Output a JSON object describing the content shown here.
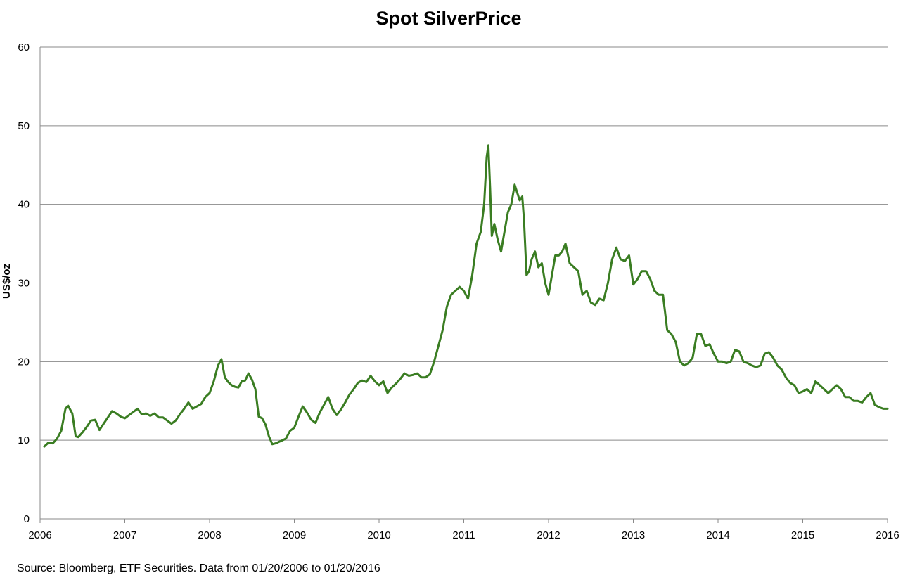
{
  "chart_data": {
    "type": "line",
    "title": "Spot SilverPrice",
    "xlabel": "",
    "ylabel": "US$/oz",
    "x_tick_labels": [
      "2006",
      "2007",
      "2008",
      "2009",
      "2010",
      "2011",
      "2012",
      "2013",
      "2014",
      "2015",
      "2016"
    ],
    "y_tick_labels": [
      "0",
      "10",
      "20",
      "30",
      "40",
      "50",
      "60"
    ],
    "xlim": [
      2006.0,
      2016.0
    ],
    "ylim": [
      0,
      60
    ],
    "grid": "horizontal",
    "legend": "none",
    "series": [
      {
        "color": "#3a7d22",
        "x": [
          2006.05,
          2006.1,
          2006.15,
          2006.2,
          2006.25,
          2006.3,
          2006.33,
          2006.38,
          2006.42,
          2006.45,
          2006.5,
          2006.55,
          2006.6,
          2006.65,
          2006.7,
          2006.75,
          2006.8,
          2006.85,
          2006.9,
          2006.95,
          2007.0,
          2007.05,
          2007.1,
          2007.15,
          2007.2,
          2007.25,
          2007.3,
          2007.35,
          2007.4,
          2007.45,
          2007.5,
          2007.55,
          2007.6,
          2007.65,
          2007.7,
          2007.75,
          2007.8,
          2007.85,
          2007.9,
          2007.95,
          2008.0,
          2008.05,
          2008.1,
          2008.14,
          2008.18,
          2008.22,
          2008.26,
          2008.3,
          2008.34,
          2008.38,
          2008.42,
          2008.46,
          2008.5,
          2008.54,
          2008.58,
          2008.62,
          2008.66,
          2008.7,
          2008.74,
          2008.78,
          2008.82,
          2008.86,
          2008.9,
          2008.95,
          2009.0,
          2009.05,
          2009.1,
          2009.15,
          2009.2,
          2009.25,
          2009.3,
          2009.35,
          2009.4,
          2009.45,
          2009.5,
          2009.55,
          2009.6,
          2009.65,
          2009.7,
          2009.75,
          2009.8,
          2009.85,
          2009.9,
          2009.95,
          2010.0,
          2010.05,
          2010.1,
          2010.15,
          2010.2,
          2010.25,
          2010.3,
          2010.35,
          2010.4,
          2010.45,
          2010.5,
          2010.55,
          2010.6,
          2010.65,
          2010.7,
          2010.75,
          2010.8,
          2010.85,
          2010.9,
          2010.95,
          2011.0,
          2011.05,
          2011.1,
          2011.15,
          2011.2,
          2011.24,
          2011.27,
          2011.29,
          2011.31,
          2011.33,
          2011.36,
          2011.4,
          2011.44,
          2011.48,
          2011.52,
          2011.56,
          2011.6,
          2011.63,
          2011.66,
          2011.69,
          2011.71,
          2011.74,
          2011.77,
          2011.8,
          2011.84,
          2011.88,
          2011.92,
          2011.96,
          2012.0,
          2012.04,
          2012.08,
          2012.12,
          2012.16,
          2012.2,
          2012.25,
          2012.3,
          2012.35,
          2012.4,
          2012.45,
          2012.5,
          2012.55,
          2012.6,
          2012.65,
          2012.7,
          2012.75,
          2012.8,
          2012.85,
          2012.9,
          2012.95,
          2013.0,
          2013.05,
          2013.1,
          2013.15,
          2013.2,
          2013.25,
          2013.3,
          2013.35,
          2013.4,
          2013.45,
          2013.5,
          2013.55,
          2013.6,
          2013.65,
          2013.7,
          2013.75,
          2013.8,
          2013.85,
          2013.9,
          2013.95,
          2014.0,
          2014.05,
          2014.1,
          2014.15,
          2014.2,
          2014.25,
          2014.3,
          2014.35,
          2014.4,
          2014.45,
          2014.5,
          2014.55,
          2014.6,
          2014.65,
          2014.7,
          2014.75,
          2014.8,
          2014.85,
          2014.9,
          2014.95,
          2015.0,
          2015.05,
          2015.1,
          2015.15,
          2015.2,
          2015.25,
          2015.3,
          2015.35,
          2015.4,
          2015.45,
          2015.5,
          2015.55,
          2015.6,
          2015.65,
          2015.7,
          2015.75,
          2015.8,
          2015.85,
          2015.9,
          2015.95,
          2016.0
        ],
        "y": [
          9.2,
          9.7,
          9.6,
          10.2,
          11.2,
          14.0,
          14.4,
          13.4,
          10.5,
          10.4,
          11.0,
          11.7,
          12.5,
          12.6,
          11.3,
          12.1,
          12.9,
          13.7,
          13.4,
          13.0,
          12.8,
          13.2,
          13.6,
          14.0,
          13.3,
          13.4,
          13.1,
          13.4,
          12.9,
          12.9,
          12.5,
          12.1,
          12.5,
          13.3,
          14.0,
          14.8,
          14.0,
          14.3,
          14.6,
          15.5,
          16.0,
          17.5,
          19.5,
          20.3,
          18.0,
          17.4,
          17.0,
          16.8,
          16.7,
          17.5,
          17.6,
          18.5,
          17.7,
          16.5,
          13.0,
          12.8,
          12.0,
          10.5,
          9.5,
          9.6,
          9.8,
          10.0,
          10.2,
          11.2,
          11.6,
          13.0,
          14.3,
          13.5,
          12.6,
          12.2,
          13.5,
          14.5,
          15.5,
          14.0,
          13.2,
          13.9,
          14.8,
          15.8,
          16.5,
          17.3,
          17.6,
          17.4,
          18.2,
          17.5,
          17.0,
          17.5,
          16.0,
          16.7,
          17.2,
          17.8,
          18.5,
          18.2,
          18.3,
          18.5,
          18.0,
          18.0,
          18.4,
          20.0,
          22.0,
          24.0,
          27.0,
          28.5,
          29.0,
          29.5,
          29.0,
          28.0,
          31.0,
          35.0,
          36.5,
          40.0,
          46.0,
          47.5,
          42.0,
          36.0,
          37.5,
          35.5,
          34.0,
          36.5,
          39.0,
          40.0,
          42.5,
          41.5,
          40.5,
          41.0,
          38.0,
          31.0,
          31.5,
          33.0,
          34.0,
          32.0,
          32.5,
          30.0,
          28.5,
          31.0,
          33.5,
          33.5,
          34.0,
          35.0,
          32.5,
          32.0,
          31.5,
          28.5,
          29.0,
          27.5,
          27.2,
          28.0,
          27.8,
          30.0,
          33.0,
          34.5,
          33.0,
          32.8,
          33.5,
          29.8,
          30.5,
          31.5,
          31.5,
          30.5,
          29.0,
          28.5,
          28.5,
          24.0,
          23.5,
          22.5,
          20.0,
          19.5,
          19.8,
          20.5,
          23.5,
          23.5,
          22.0,
          22.2,
          21.0,
          20.0,
          20.0,
          19.8,
          20.0,
          21.5,
          21.3,
          20.0,
          19.8,
          19.5,
          19.3,
          19.5,
          21.0,
          21.2,
          20.5,
          19.5,
          19.0,
          18.0,
          17.3,
          17.0,
          16.0,
          16.2,
          16.5,
          16.0,
          17.5,
          17.0,
          16.5,
          16.0,
          16.5,
          17.0,
          16.5,
          15.5,
          15.5,
          15.0,
          15.0,
          14.8,
          15.5,
          16.0,
          14.5,
          14.2,
          14.0,
          14.0
        ]
      }
    ]
  }
}
